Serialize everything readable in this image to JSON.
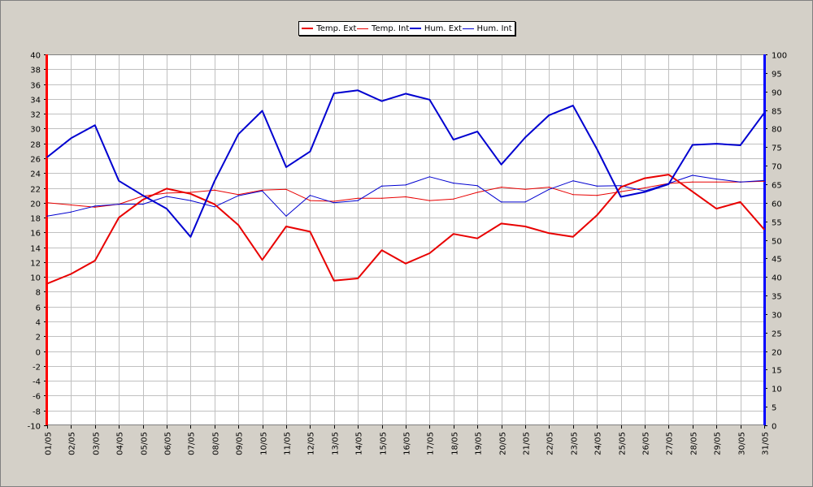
{
  "chart_data": {
    "type": "line",
    "categories": [
      "01/05",
      "02/05",
      "03/05",
      "04/05",
      "05/05",
      "06/05",
      "07/05",
      "08/05",
      "09/05",
      "10/05",
      "11/05",
      "12/05",
      "13/05",
      "14/05",
      "15/05",
      "16/05",
      "17/05",
      "18/05",
      "19/05",
      "20/05",
      "21/05",
      "22/05",
      "23/05",
      "24/05",
      "25/05",
      "26/05",
      "27/05",
      "28/05",
      "29/05",
      "30/05",
      "31/05"
    ],
    "y_left": {
      "min": -10,
      "max": 40,
      "step": 2,
      "color": "#ff0000"
    },
    "y_right": {
      "min": 0,
      "max": 100,
      "step": 5,
      "color": "#0000ff"
    },
    "grid": true,
    "legend_position": "top-center",
    "series": [
      {
        "name": "Temp. Ext",
        "axis": "left",
        "color": "#e80000",
        "width": 2,
        "values": [
          9.1,
          10.4,
          12.2,
          18.0,
          20.4,
          21.9,
          21.2,
          19.8,
          17.0,
          12.3,
          16.8,
          16.1,
          9.5,
          9.8,
          13.6,
          11.8,
          13.2,
          15.8,
          15.2,
          17.2,
          16.8,
          15.9,
          15.4,
          18.3,
          22.1,
          23.3,
          23.8,
          21.5,
          19.2,
          20.1,
          16.4
        ]
      },
      {
        "name": "Temp. Int",
        "axis": "left",
        "color": "#e80000",
        "width": 1,
        "values": [
          20.0,
          19.7,
          19.4,
          19.8,
          20.9,
          21.3,
          21.4,
          21.7,
          21.1,
          21.7,
          21.8,
          20.3,
          20.2,
          20.6,
          20.6,
          20.8,
          20.3,
          20.5,
          21.4,
          22.1,
          21.8,
          22.1,
          21.1,
          21.0,
          21.5,
          22.0,
          22.6,
          22.8,
          22.8,
          22.8,
          22.9
        ]
      },
      {
        "name": "Hum. Ext",
        "axis": "right",
        "color": "#0000d0",
        "width": 2,
        "values": [
          72.3,
          77.4,
          80.9,
          65.9,
          62.0,
          58.4,
          50.8,
          65.8,
          78.5,
          84.8,
          69.6,
          73.8,
          89.5,
          90.3,
          87.4,
          89.4,
          87.8,
          77.0,
          79.2,
          70.3,
          77.6,
          83.6,
          86.2,
          74.5,
          61.6,
          62.9,
          65.0,
          75.6,
          75.9,
          75.5,
          84.2
        ]
      },
      {
        "name": "Hum. Int",
        "axis": "right",
        "color": "#0000d0",
        "width": 1,
        "values": [
          56.4,
          57.5,
          59.1,
          59.6,
          59.6,
          61.7,
          60.6,
          58.9,
          61.9,
          63.2,
          56.4,
          62.0,
          60.0,
          60.6,
          64.5,
          64.8,
          67.0,
          65.3,
          64.6,
          60.2,
          60.2,
          63.6,
          65.9,
          64.5,
          64.6,
          63.2,
          65.2,
          67.4,
          66.4,
          65.6,
          66.0
        ]
      }
    ]
  }
}
